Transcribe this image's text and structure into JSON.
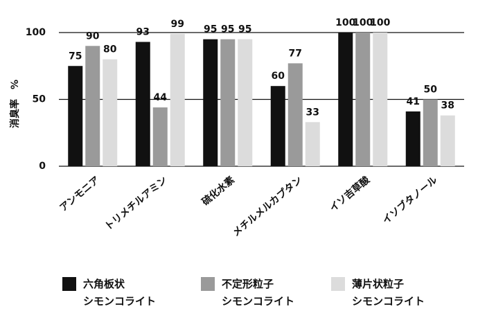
{
  "chart_data": {
    "type": "bar",
    "y_label": "消臭率　%",
    "categories": [
      "アンモニア",
      "トリメチルアミン",
      "硫化水素",
      "メチルメルカプタン",
      "イソ吉草酸",
      "イソブタノール"
    ],
    "series": [
      {
        "name": "六角板状\nシモンコライト",
        "color": "#111111",
        "values": [
          75,
          93,
          95,
          60,
          100,
          41
        ]
      },
      {
        "name": "不定形粒子\nシモンコライト",
        "color": "#9a9a9a",
        "values": [
          90,
          44,
          95,
          77,
          100,
          50
        ]
      },
      {
        "name": "薄片状粒子\nシモンコライト",
        "color": "#dcdcdc",
        "values": [
          80,
          99,
          95,
          33,
          100,
          38
        ]
      }
    ],
    "ylim": [
      0,
      100
    ],
    "yticks": [
      0,
      50,
      100
    ],
    "grid": true
  }
}
